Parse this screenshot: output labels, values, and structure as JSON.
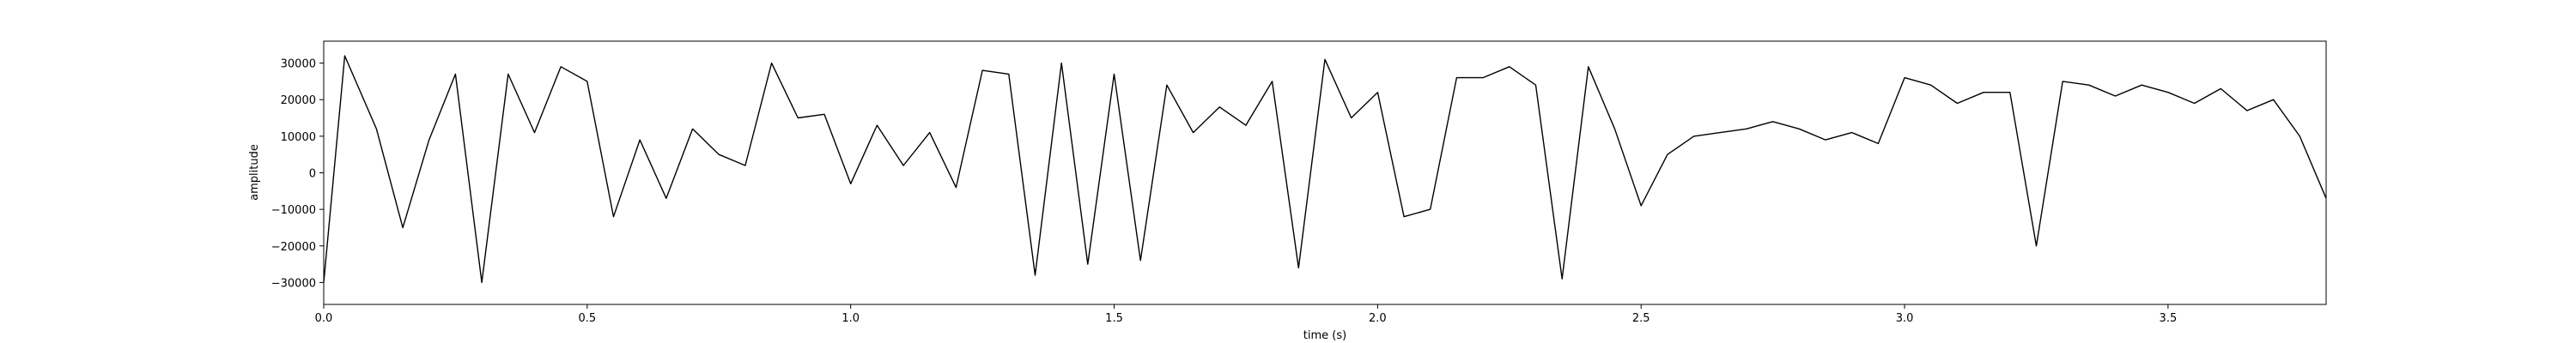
{
  "chart_data": {
    "type": "line",
    "title": "",
    "xlabel": "time (s)",
    "ylabel": "amplitude",
    "xlim": [
      0.0,
      3.8
    ],
    "ylim": [
      -36000,
      36000
    ],
    "xticks": [
      0.0,
      0.5,
      1.0,
      1.5,
      2.0,
      2.5,
      3.0,
      3.5
    ],
    "xtick_labels": [
      "0.0",
      "0.5",
      "1.0",
      "1.5",
      "2.0",
      "2.5",
      "3.0",
      "3.5"
    ],
    "yticks": [
      -30000,
      -20000,
      -10000,
      0,
      10000,
      20000,
      30000
    ],
    "ytick_labels": [
      "−30000",
      "−20000",
      "−10000",
      "0",
      "10000",
      "20000",
      "30000"
    ],
    "grid": false,
    "line_color": "#000000",
    "series": [
      {
        "x": [
          0.0,
          0.04,
          0.1,
          0.15,
          0.2,
          0.25,
          0.3,
          0.35,
          0.4,
          0.45,
          0.5,
          0.55,
          0.6,
          0.65,
          0.7,
          0.75,
          0.8,
          0.85,
          0.9,
          0.95,
          1.0,
          1.05,
          1.1,
          1.15,
          1.2,
          1.25,
          1.3,
          1.35,
          1.4,
          1.45,
          1.5,
          1.55,
          1.6,
          1.65,
          1.7,
          1.75,
          1.8,
          1.85,
          1.9,
          1.95,
          2.0,
          2.05,
          2.1,
          2.15,
          2.2,
          2.25,
          2.3,
          2.35,
          2.4,
          2.45,
          2.5,
          2.55,
          2.6,
          2.65,
          2.7,
          2.75,
          2.8,
          2.85,
          2.9,
          2.95,
          3.0,
          3.05,
          3.1,
          3.15,
          3.2,
          3.25,
          3.3,
          3.35,
          3.4,
          3.45,
          3.5,
          3.55,
          3.6,
          3.65,
          3.7,
          3.75,
          3.8
        ],
        "y": [
          -30000,
          32000,
          12000,
          -15000,
          9000,
          27000,
          -30000,
          27000,
          11000,
          29000,
          25000,
          -12000,
          9000,
          -7000,
          12000,
          5000,
          2000,
          30000,
          15000,
          16000,
          -3000,
          13000,
          2000,
          11000,
          -4000,
          28000,
          27000,
          -28000,
          30000,
          -25000,
          27000,
          -24000,
          24000,
          11000,
          18000,
          13000,
          25000,
          -26000,
          31000,
          15000,
          22000,
          -12000,
          -10000,
          26000,
          26000,
          29000,
          24000,
          -29000,
          29000,
          12000,
          -9000,
          5000,
          10000,
          11000,
          12000,
          14000,
          12000,
          9000,
          11000,
          8000,
          26000,
          24000,
          19000,
          22000,
          22000,
          -20000,
          25000,
          24000,
          21000,
          24000,
          22000,
          19000,
          23000,
          17000,
          20000,
          10000,
          -7000
        ]
      }
    ]
  }
}
